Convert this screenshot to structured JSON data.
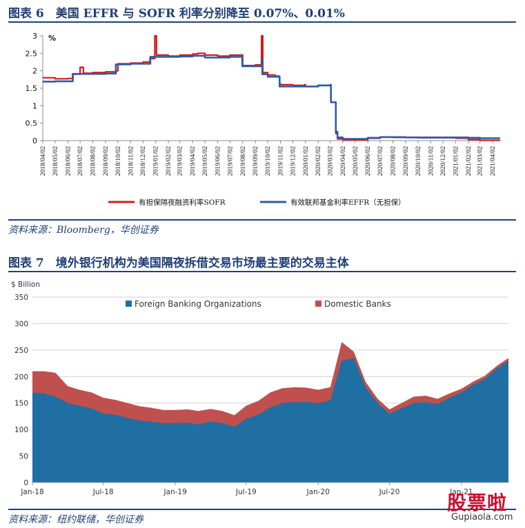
{
  "figure6": {
    "title": "图表 6　美国 EFFR 与 SOFR 利率分别降至 0.07%、0.01%",
    "source": "资料来源：Bloomberg，华创证券"
  },
  "figure7": {
    "title": "图表 7　境外银行机构为美国隔夜拆借交易市场最主要的交易主体",
    "source": "资料来源：纽约联储，华创证券"
  },
  "watermark": {
    "cn": "股票啦",
    "en": "Gupiaola.com"
  },
  "colors": {
    "title": "#1f3f73",
    "sofr": "#d7191c",
    "effr": "#2c5ba8",
    "foreign": "#1f6fa3",
    "domestic": "#c0504d",
    "grid": "#d0d0d0"
  },
  "chart_data": [
    {
      "type": "line",
      "title": "",
      "ylabel": "%",
      "ylim": [
        0,
        3
      ],
      "yticks": [
        "0",
        "0.5",
        "1",
        "1.5",
        "2",
        "2.5",
        "3"
      ],
      "x_tick_labels": [
        "2018/04/02",
        "2018/05/02",
        "2018/06/02",
        "2018/07/02",
        "2018/08/02",
        "2018/09/02",
        "2018/10/02",
        "2018/11/02",
        "2018/12/02",
        "2019/01/02",
        "2019/02/02",
        "2019/03/02",
        "2019/04/02",
        "2019/05/02",
        "2019/06/02",
        "2019/07/02",
        "2019/08/02",
        "2019/09/02",
        "2019/10/02",
        "2019/11/02",
        "2019/12/02",
        "2020/01/02",
        "2020/02/02",
        "2020/03/02",
        "2020/04/02",
        "2020/05/02",
        "2020/06/02",
        "2020/07/02",
        "2020/08/02",
        "2020/09/02",
        "2020/10/02",
        "2020/11/02",
        "2020/12/02",
        "2021/01/02",
        "2021/02/02",
        "2021/03/02",
        "2021/04/02"
      ],
      "grid": false,
      "legend_position": "bottom",
      "series": [
        {
          "name": "有担保隔夜融资利率SOFR",
          "color": "#d7191c",
          "points": [
            [
              "2018/04/02",
              1.8
            ],
            [
              "2018/05/02",
              1.77
            ],
            [
              "2018/06/02",
              1.78
            ],
            [
              "2018/06/15",
              1.9
            ],
            [
              "2018/07/02",
              2.1
            ],
            [
              "2018/07/10",
              1.93
            ],
            [
              "2018/08/02",
              1.95
            ],
            [
              "2018/09/02",
              1.97
            ],
            [
              "2018/09/28",
              2.0
            ],
            [
              "2018/10/02",
              2.2
            ],
            [
              "2018/11/02",
              2.22
            ],
            [
              "2018/12/02",
              2.25
            ],
            [
              "2018/12/19",
              2.35
            ],
            [
              "2018/12/31",
              3.0
            ],
            [
              "2019/01/04",
              2.45
            ],
            [
              "2019/02/02",
              2.42
            ],
            [
              "2019/03/02",
              2.45
            ],
            [
              "2019/04/02",
              2.48
            ],
            [
              "2019/04/15",
              2.5
            ],
            [
              "2019/05/02",
              2.45
            ],
            [
              "2019/06/02",
              2.42
            ],
            [
              "2019/07/02",
              2.45
            ],
            [
              "2019/07/31",
              2.45
            ],
            [
              "2019/08/02",
              2.15
            ],
            [
              "2019/09/02",
              2.17
            ],
            [
              "2019/09/17",
              3.0
            ],
            [
              "2019/09/20",
              1.95
            ],
            [
              "2019/10/02",
              1.88
            ],
            [
              "2019/10/20",
              1.85
            ],
            [
              "2019/10/31",
              1.63
            ],
            [
              "2019/11/02",
              1.6
            ],
            [
              "2019/12/02",
              1.58
            ],
            [
              "2019/12/31",
              1.6
            ],
            [
              "2020/01/02",
              1.55
            ],
            [
              "2020/02/02",
              1.58
            ],
            [
              "2020/03/02",
              1.6
            ],
            [
              "2020/03/04",
              1.1
            ],
            [
              "2020/03/16",
              0.2
            ],
            [
              "2020/03/20",
              0.05
            ],
            [
              "2020/04/02",
              0.02
            ],
            [
              "2020/05/02",
              0.02
            ],
            [
              "2020/06/02",
              0.07
            ],
            [
              "2020/07/02",
              0.1
            ],
            [
              "2020/08/02",
              0.09
            ],
            [
              "2020/09/02",
              0.09
            ],
            [
              "2020/10/02",
              0.08
            ],
            [
              "2020/11/02",
              0.08
            ],
            [
              "2020/12/02",
              0.08
            ],
            [
              "2021/01/02",
              0.07
            ],
            [
              "2021/02/02",
              0.03
            ],
            [
              "2021/03/02",
              0.01
            ],
            [
              "2021/04/02",
              0.01
            ],
            [
              "2021/04/20",
              0.01
            ]
          ]
        },
        {
          "name": "有效联邦基金利率EFFR（无担保）",
          "color": "#2c5ba8",
          "points": [
            [
              "2018/04/02",
              1.69
            ],
            [
              "2018/05/02",
              1.7
            ],
            [
              "2018/06/02",
              1.7
            ],
            [
              "2018/06/14",
              1.91
            ],
            [
              "2018/07/02",
              1.91
            ],
            [
              "2018/08/02",
              1.91
            ],
            [
              "2018/09/02",
              1.92
            ],
            [
              "2018/09/27",
              2.18
            ],
            [
              "2018/10/02",
              2.18
            ],
            [
              "2018/11/02",
              2.2
            ],
            [
              "2018/12/02",
              2.2
            ],
            [
              "2018/12/20",
              2.4
            ],
            [
              "2019/01/02",
              2.4
            ],
            [
              "2019/02/02",
              2.4
            ],
            [
              "2019/03/02",
              2.41
            ],
            [
              "2019/04/02",
              2.43
            ],
            [
              "2019/05/02",
              2.38
            ],
            [
              "2019/06/02",
              2.38
            ],
            [
              "2019/07/02",
              2.4
            ],
            [
              "2019/07/31",
              2.4
            ],
            [
              "2019/08/01",
              2.13
            ],
            [
              "2019/09/02",
              2.13
            ],
            [
              "2019/09/17",
              2.3
            ],
            [
              "2019/09/19",
              1.9
            ],
            [
              "2019/10/02",
              1.83
            ],
            [
              "2019/10/31",
              1.55
            ],
            [
              "2019/11/02",
              1.55
            ],
            [
              "2019/12/02",
              1.55
            ],
            [
              "2020/01/02",
              1.55
            ],
            [
              "2020/02/02",
              1.58
            ],
            [
              "2020/03/02",
              1.59
            ],
            [
              "2020/03/04",
              1.1
            ],
            [
              "2020/03/16",
              0.25
            ],
            [
              "2020/03/20",
              0.09
            ],
            [
              "2020/04/02",
              0.05
            ],
            [
              "2020/05/02",
              0.05
            ],
            [
              "2020/06/02",
              0.08
            ],
            [
              "2020/07/02",
              0.1
            ],
            [
              "2020/08/02",
              0.1
            ],
            [
              "2020/09/02",
              0.09
            ],
            [
              "2020/10/02",
              0.09
            ],
            [
              "2020/11/02",
              0.09
            ],
            [
              "2020/12/02",
              0.09
            ],
            [
              "2021/01/02",
              0.09
            ],
            [
              "2021/02/02",
              0.08
            ],
            [
              "2021/03/02",
              0.07
            ],
            [
              "2021/04/02",
              0.07
            ],
            [
              "2021/04/20",
              0.07
            ]
          ]
        }
      ]
    },
    {
      "type": "area",
      "stacked": true,
      "title": "",
      "ylabel": "$ Billion",
      "ylim": [
        0,
        350
      ],
      "yticks": [
        "0",
        "50",
        "100",
        "150",
        "200",
        "250",
        "300",
        "350"
      ],
      "x_tick_labels": [
        "Jan-18",
        "Jul-18",
        "Jan-19",
        "Jul-19",
        "Jan-20",
        "Jul-20",
        "Jan-21"
      ],
      "grid": true,
      "legend_position": "top",
      "series": [
        {
          "name": "Foreign Banking Organizations",
          "color": "#1f6fa3",
          "points": [
            [
              "2018-01",
              170
            ],
            [
              "2018-02",
              168
            ],
            [
              "2018-03",
              162
            ],
            [
              "2018-04",
              150
            ],
            [
              "2018-05",
              145
            ],
            [
              "2018-06",
              140
            ],
            [
              "2018-07",
              130
            ],
            [
              "2018-08",
              128
            ],
            [
              "2018-09",
              122
            ],
            [
              "2018-10",
              117
            ],
            [
              "2018-11",
              115
            ],
            [
              "2018-12",
              112
            ],
            [
              "2019-01",
              112
            ],
            [
              "2019-02",
              113
            ],
            [
              "2019-03",
              110
            ],
            [
              "2019-04",
              115
            ],
            [
              "2019-05",
              112
            ],
            [
              "2019-06",
              105
            ],
            [
              "2019-07",
              120
            ],
            [
              "2019-08",
              128
            ],
            [
              "2019-09",
              142
            ],
            [
              "2019-10",
              150
            ],
            [
              "2019-11",
              152
            ],
            [
              "2019-12",
              152
            ],
            [
              "2020-01",
              150
            ],
            [
              "2020-02",
              155
            ],
            [
              "2020-03",
              230
            ],
            [
              "2020-04",
              235
            ],
            [
              "2020-05",
              180
            ],
            [
              "2020-06",
              150
            ],
            [
              "2020-07",
              130
            ],
            [
              "2020-08",
              140
            ],
            [
              "2020-09",
              150
            ],
            [
              "2020-10",
              152
            ],
            [
              "2020-11",
              148
            ],
            [
              "2020-12",
              160
            ],
            [
              "2021-01",
              170
            ],
            [
              "2021-02",
              185
            ],
            [
              "2021-03",
              195
            ],
            [
              "2021-04",
              215
            ],
            [
              "2021-05",
              230
            ]
          ]
        },
        {
          "name": "Domestic Banks",
          "color": "#c0504d",
          "points": [
            [
              "2018-01",
              40
            ],
            [
              "2018-02",
              42
            ],
            [
              "2018-03",
              45
            ],
            [
              "2018-04",
              32
            ],
            [
              "2018-05",
              30
            ],
            [
              "2018-06",
              30
            ],
            [
              "2018-07",
              30
            ],
            [
              "2018-08",
              28
            ],
            [
              "2018-09",
              28
            ],
            [
              "2018-10",
              27
            ],
            [
              "2018-11",
              26
            ],
            [
              "2018-12",
              25
            ],
            [
              "2019-01",
              25
            ],
            [
              "2019-02",
              25
            ],
            [
              "2019-03",
              25
            ],
            [
              "2019-04",
              24
            ],
            [
              "2019-05",
              23
            ],
            [
              "2019-06",
              22
            ],
            [
              "2019-07",
              25
            ],
            [
              "2019-08",
              26
            ],
            [
              "2019-09",
              28
            ],
            [
              "2019-10",
              28
            ],
            [
              "2019-11",
              28
            ],
            [
              "2019-12",
              27
            ],
            [
              "2020-01",
              25
            ],
            [
              "2020-02",
              25
            ],
            [
              "2020-03",
              35
            ],
            [
              "2020-04",
              12
            ],
            [
              "2020-05",
              10
            ],
            [
              "2020-06",
              8
            ],
            [
              "2020-07",
              8
            ],
            [
              "2020-08",
              10
            ],
            [
              "2020-09",
              12
            ],
            [
              "2020-10",
              12
            ],
            [
              "2020-11",
              10
            ],
            [
              "2020-12",
              8
            ],
            [
              "2021-01",
              7
            ],
            [
              "2021-02",
              6
            ],
            [
              "2021-03",
              6
            ],
            [
              "2021-04",
              5
            ],
            [
              "2021-05",
              5
            ]
          ]
        }
      ]
    }
  ]
}
